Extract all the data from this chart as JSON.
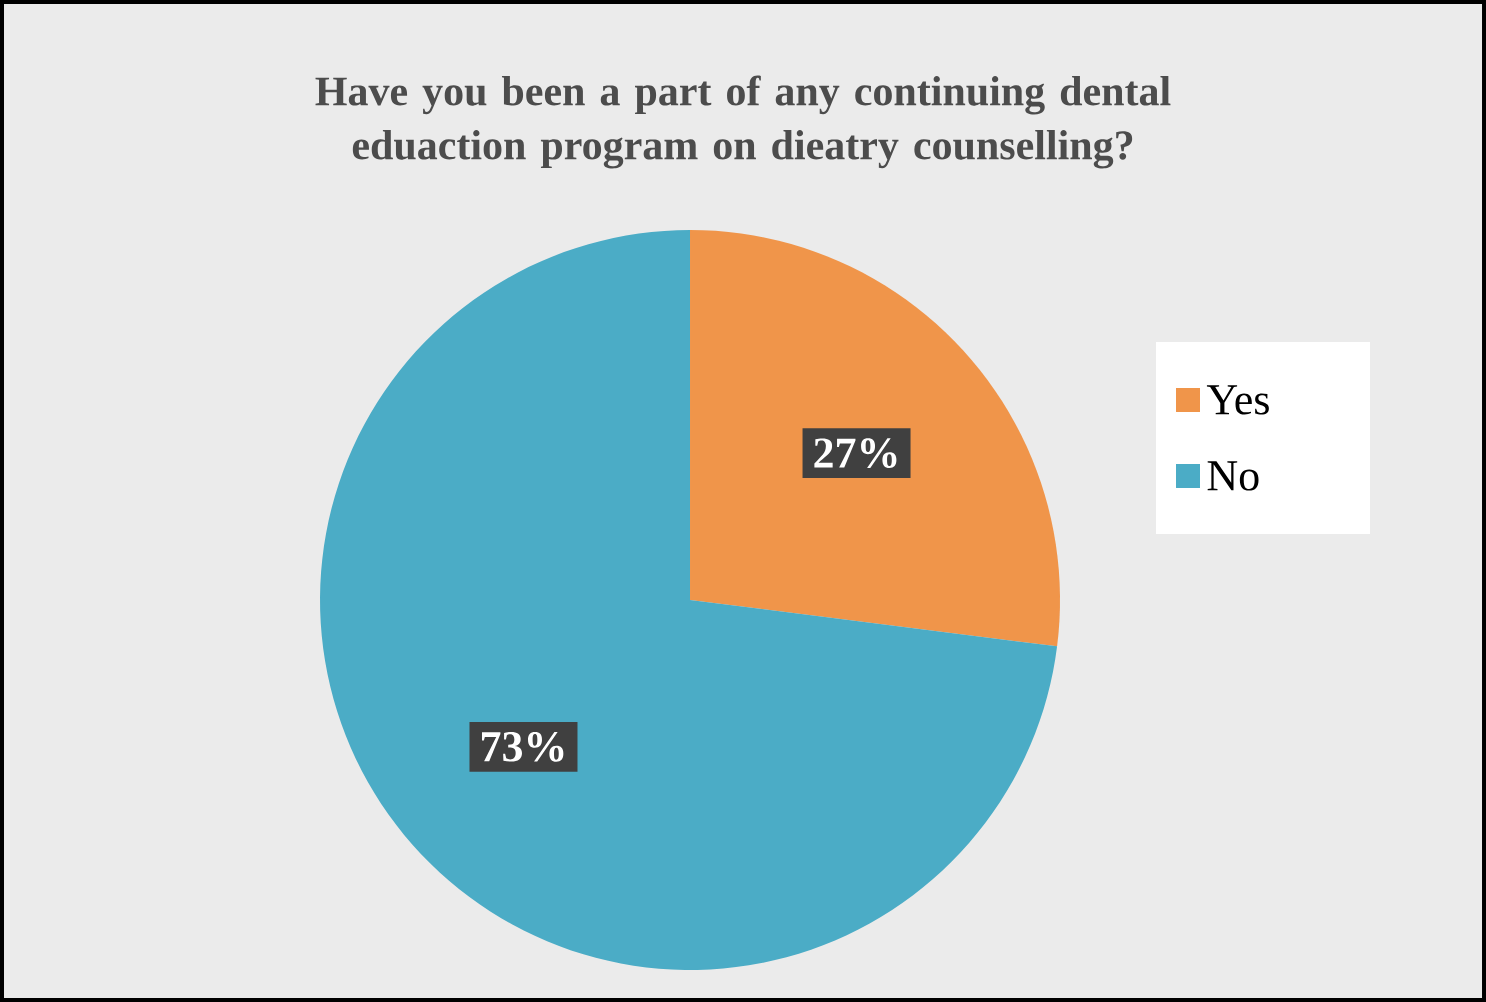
{
  "chart_data": {
    "type": "pie",
    "title": "Have you been a part of any continuing dental eduaction program on dieatry counselling?",
    "categories": [
      "Yes",
      "No"
    ],
    "values": [
      27,
      73
    ],
    "colors": [
      "#f0954a",
      "#4bacc6"
    ],
    "value_labels": [
      "27%",
      "73%"
    ],
    "legend": "right"
  }
}
